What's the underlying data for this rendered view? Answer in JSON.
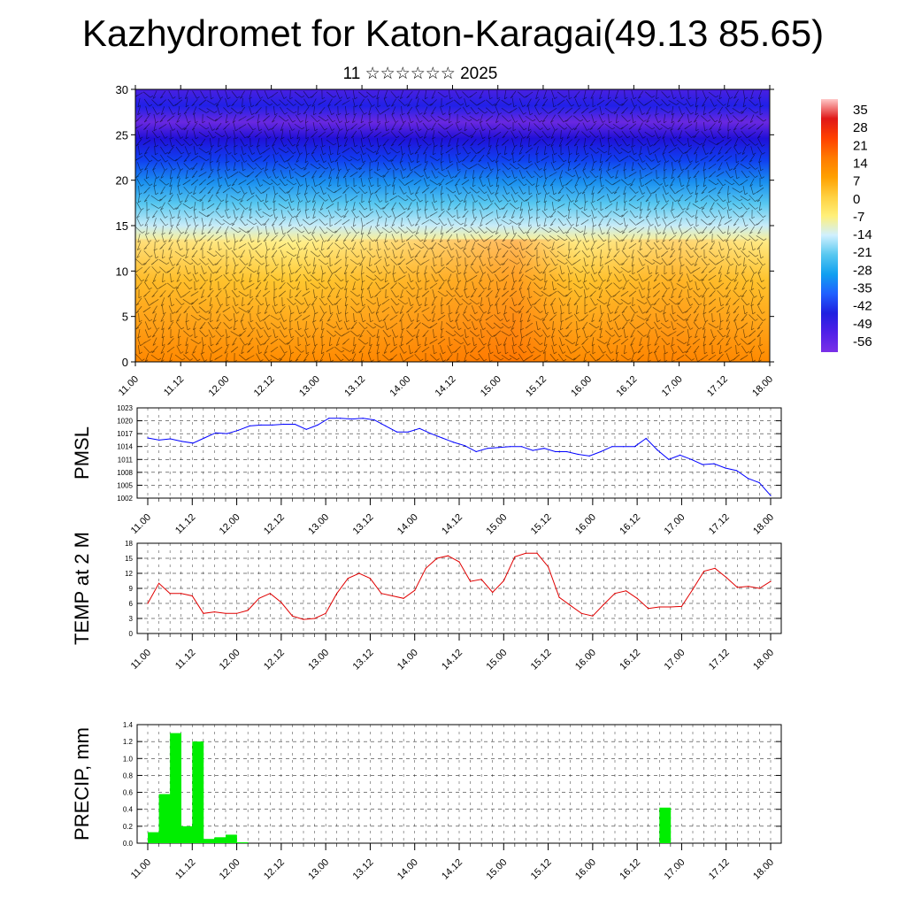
{
  "title": "Kazhydromet for Katon-Karagai(49.13 85.65)",
  "subtitle": "11 ☆☆☆☆☆☆ 2025",
  "chart_data": [
    {
      "type": "heatmap",
      "name": "upper-air temperature cross-section",
      "ylim": [
        0,
        30
      ],
      "yticks": [
        "0",
        "5",
        "10",
        "15",
        "20",
        "25",
        "30"
      ],
      "xticks": [
        "11.00",
        "11.12",
        "12.00",
        "12.12",
        "13.00",
        "13.12",
        "14.00",
        "14.12",
        "15.00",
        "15.12",
        "16.00",
        "16.12",
        "17.00",
        "17.12",
        "18.00"
      ],
      "colorbar_labels": [
        "35",
        "28",
        "21",
        "14",
        "7",
        "0",
        "-7",
        "-14",
        "-21",
        "-28",
        "-35",
        "-42",
        "-49",
        "-56"
      ],
      "colorbar_stops": [
        "#ffc8c8",
        "#e01818",
        "#ff4000",
        "#ff7a00",
        "#ffa000",
        "#ffd040",
        "#fff07a",
        "#d0f0ff",
        "#58c8f0",
        "#10a0f0",
        "#2060ff",
        "#2020e0",
        "#5020e8",
        "#7a30e8"
      ],
      "wind_barbs": true
    },
    {
      "type": "line",
      "ylabel": "PMSL",
      "ylim": [
        1002,
        1023
      ],
      "yticks": [
        "1002",
        "1005",
        "1008",
        "1011",
        "1014",
        "1017",
        "1020",
        "1023"
      ],
      "xticks": [
        "11.00",
        "11.12",
        "12.00",
        "12.12",
        "13.00",
        "13.12",
        "14.00",
        "14.12",
        "15.00",
        "15.12",
        "16.00",
        "16.12",
        "17.00",
        "17.12",
        "18.00"
      ],
      "color": "#0000ff",
      "values": [
        1016,
        1015.5,
        1015.8,
        1015.2,
        1014.8,
        1016,
        1017.2,
        1017,
        1017.8,
        1018.8,
        1019,
        1019,
        1019.2,
        1019.2,
        1018,
        1019,
        1020.6,
        1020.6,
        1020.4,
        1020.6,
        1020.2,
        1018.8,
        1017.4,
        1017.4,
        1018.2,
        1017,
        1016,
        1015,
        1014.2,
        1012.8,
        1013.6,
        1013.8,
        1014,
        1014,
        1013.1,
        1013.6,
        1012.8,
        1012.8,
        1012.2,
        1011.8,
        1012.8,
        1014,
        1014,
        1014,
        1015.9,
        1013.2,
        1011,
        1012,
        1011,
        1009.8,
        1010,
        1009,
        1008.4,
        1006.6,
        1005.6,
        1002.6
      ]
    },
    {
      "type": "line",
      "ylabel": "TEMP at 2 M",
      "ylim": [
        0,
        18
      ],
      "yticks": [
        "0",
        "3",
        "6",
        "9",
        "12",
        "15",
        "18"
      ],
      "xticks": [
        "11.00",
        "11.12",
        "12.00",
        "12.12",
        "13.00",
        "13.12",
        "14.00",
        "14.12",
        "15.00",
        "15.12",
        "16.00",
        "16.12",
        "17.00",
        "17.12",
        "18.00"
      ],
      "color": "#e00000",
      "values": [
        6,
        10,
        8,
        8,
        7.5,
        4,
        4.3,
        4,
        4,
        4.6,
        7,
        8,
        6.2,
        3.5,
        2.8,
        3,
        4,
        8,
        11,
        12,
        11,
        8,
        7.5,
        7,
        8.6,
        13,
        15,
        15.5,
        14.3,
        10.4,
        10.8,
        8.2,
        10.5,
        15.3,
        16,
        16,
        13.3,
        7.2,
        5.6,
        4,
        3.5,
        5.8,
        8,
        8.5,
        7,
        5,
        5.3,
        5.3,
        5.4,
        8.8,
        12.4,
        13,
        11.2,
        9.2,
        9.4,
        9,
        10.4
      ]
    },
    {
      "type": "bar",
      "ylabel": "PRECIP, mm",
      "ylim": [
        0,
        1.4
      ],
      "yticks": [
        "0.0",
        "0.2",
        "0.4",
        "0.6",
        "0.8",
        "1.0",
        "1.2",
        "1.4"
      ],
      "xticks": [
        "11.00",
        "11.12",
        "12.00",
        "12.12",
        "13.00",
        "13.12",
        "14.00",
        "14.12",
        "15.00",
        "15.12",
        "16.00",
        "16.12",
        "17.00",
        "17.12",
        "18.00"
      ],
      "color": "#00ee00",
      "values": [
        0.13,
        0.58,
        1.3,
        0.2,
        1.2,
        0.05,
        0.07,
        0.1,
        0.01,
        0,
        0,
        0,
        0,
        0,
        0,
        0,
        0,
        0,
        0,
        0,
        0,
        0,
        0,
        0,
        0,
        0,
        0,
        0,
        0,
        0,
        0,
        0,
        0,
        0,
        0,
        0,
        0,
        0,
        0,
        0,
        0,
        0,
        0,
        0,
        0,
        0,
        0.42,
        0,
        0,
        0,
        0,
        0,
        0,
        0,
        0,
        0
      ]
    }
  ]
}
